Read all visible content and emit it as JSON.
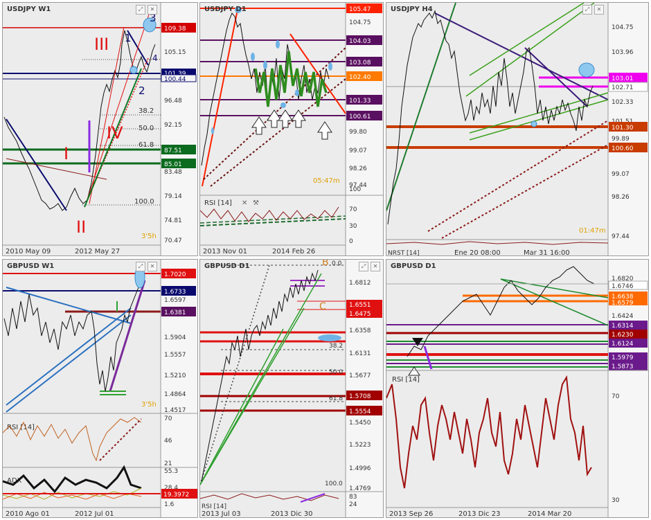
{
  "panels": [
    {
      "id": "usdjpy-w1",
      "title": "USDJPY W1",
      "prices": [
        "105.15",
        "96.48",
        "92.15",
        "83.48",
        "79.14",
        "74.81",
        "70.47"
      ],
      "price_tags": [
        {
          "label": "109.38",
          "color": "#d40000"
        },
        {
          "label": "101.39",
          "color": "#0a0a6e"
        },
        {
          "label": "100.44",
          "color": "#0a0a6e"
        },
        {
          "label": "87.51",
          "color": "#0b6b1e"
        },
        {
          "label": "85.01",
          "color": "#0b6b1e"
        }
      ],
      "fib_labels": [
        "38.2",
        "50.0",
        "61.8",
        "100.0"
      ],
      "waves": [
        "III",
        "IV",
        "I",
        "II",
        "3",
        "1",
        "2",
        "4"
      ],
      "timeframe": "3'5h",
      "dates": [
        "2010 May 09",
        "2012 May 27"
      ]
    },
    {
      "id": "usdjpy-d1",
      "title": "USDJPY D1",
      "prices": [
        "104.75",
        "101.33",
        "99.80",
        "99.07",
        "98.26",
        "97.44"
      ],
      "price_tags": [
        {
          "label": "105.47",
          "color": "#ff2200"
        },
        {
          "label": "104.03",
          "color": "#5a1060"
        },
        {
          "label": "103.08",
          "color": "#5a1060"
        },
        {
          "label": "102.40",
          "color": "#ff7a00"
        },
        {
          "label": "101.33",
          "color": "#5a1060"
        },
        {
          "label": "100.61",
          "color": "#5a1060"
        }
      ],
      "rsi_label": "RSI [14]",
      "rsi_levels": [
        "100",
        "70",
        "30",
        "0"
      ],
      "timeframe": "05:47m",
      "dates": [
        "2013 Nov 01",
        "2014 Feb 26"
      ]
    },
    {
      "id": "usdjpy-h4",
      "title": "USDJPY H4",
      "prices": [
        "104.75",
        "103.96",
        "102.33",
        "101.51",
        "99.89",
        "99.07",
        "98.26",
        "97.44"
      ],
      "price_tags": [
        {
          "label": "103.01",
          "color": "#ee00ee"
        },
        {
          "label": "102.71",
          "color": "#ffffff"
        },
        {
          "label": "101.30",
          "color": "#c83c00"
        },
        {
          "label": "100.60",
          "color": "#c83c00"
        }
      ],
      "indicator_label": "NRST [14]",
      "timeframe": "01:47m",
      "dates": [
        "Ene 20 08:00",
        "Mar 31 16:00"
      ]
    },
    {
      "id": "gbpusd-w1",
      "title": "GBPUSD W1",
      "prices": [
        "1.6597",
        "1.5904",
        "1.5557",
        "1.5210",
        "1.4864",
        "1.4517"
      ],
      "price_tags": [
        {
          "label": "1.7020",
          "color": "#e01010"
        },
        {
          "label": "1.6733",
          "color": "#0a0a6e"
        },
        {
          "label": "1.6381",
          "color": "#5a1060"
        }
      ],
      "rsi_label": "RSI [14]",
      "rsi_levels": [
        "70",
        "46",
        "21"
      ],
      "adx_label": "ADX",
      "adx_levels": [
        "55.3",
        "28.4"
      ],
      "adx_tag": {
        "label": "19.3972",
        "color": "#e01010"
      },
      "adx_bottom": "1.6",
      "timeframe": "3'5h",
      "dates": [
        "2010 Ago 01",
        "2012 Jul 01"
      ]
    },
    {
      "id": "gbpusd-d1-mid",
      "title": "GBPUSD D1",
      "prices": [
        "1.6812",
        "1.6358",
        "1.6131",
        "1.5677",
        "1.5450",
        "1.5223",
        "1.4996",
        "1.4769"
      ],
      "price_tags": [
        {
          "label": "1.6551",
          "color": "#e01010"
        },
        {
          "label": "1.6475",
          "color": "#e01010"
        },
        {
          "label": "1.5708",
          "color": "#a00000"
        },
        {
          "label": "1.5554",
          "color": "#a00000"
        }
      ],
      "fib_labels": [
        "0.0",
        "38.2",
        "50.0",
        "61.8",
        "100.0"
      ],
      "waves": [
        "B",
        "C"
      ],
      "rsi_label": "RSI [14]",
      "rsi_levels": [
        "83",
        "24"
      ],
      "dates": [
        "2013 Jul 03",
        "2013 Dic 30"
      ]
    },
    {
      "id": "gbpusd-d1-right",
      "title": "GBPUSD D1",
      "prices": [
        "1.6820",
        "1.6424"
      ],
      "price_tags": [
        {
          "label": "1.6746",
          "color": "#ffffff"
        },
        {
          "label": "1.6638",
          "color": "#ff6a00"
        },
        {
          "label": "1.6579",
          "color": "#ff6a00"
        },
        {
          "label": "1.6314",
          "color": "#6a1a8a"
        },
        {
          "label": "1.6230",
          "color": "#a00000"
        },
        {
          "label": "1.6124",
          "color": "#6a1a8a"
        },
        {
          "label": "1.5979",
          "color": "#6a1a8a"
        },
        {
          "label": "1.5873",
          "color": "#6a1a8a"
        }
      ],
      "rsi_label": "RSI [14]",
      "rsi_levels": [
        "70",
        "30"
      ],
      "dates": [
        "2013 Sep 26",
        "2013 Dic 23",
        "2014 Mar 20"
      ]
    }
  ],
  "chart_data": [
    {
      "type": "line",
      "title": "USDJPY W1",
      "ylim": [
        70.47,
        112
      ],
      "x": [
        "2010 May 09",
        "2012 May 27"
      ]
    },
    {
      "type": "line",
      "title": "USDJPY D1",
      "ylim": [
        97.0,
        105.8
      ]
    },
    {
      "type": "line",
      "title": "USDJPY H4",
      "ylim": [
        97.44,
        105.2
      ]
    },
    {
      "type": "line",
      "title": "GBPUSD W1",
      "ylim": [
        1.44,
        1.72
      ]
    },
    {
      "type": "line",
      "title": "GBPUSD D1",
      "ylim": [
        1.47,
        1.7
      ]
    },
    {
      "type": "line",
      "title": "GBPUSD D1",
      "ylim": [
        1.58,
        1.69
      ]
    }
  ]
}
